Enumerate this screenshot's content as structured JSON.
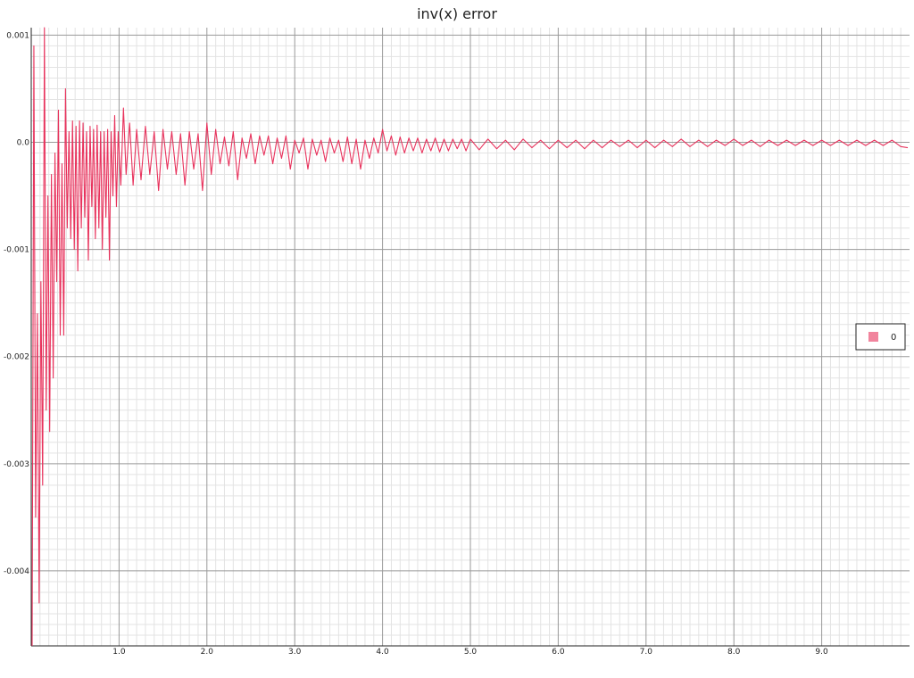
{
  "chart_data": {
    "type": "line",
    "title": "inv(x) error",
    "xlabel": "",
    "ylabel": "",
    "xlim": [
      0.0,
      10.0
    ],
    "ylim": [
      -0.0047,
      0.00107
    ],
    "x_ticks": [
      "1.0",
      "2.0",
      "3.0",
      "4.0",
      "5.0",
      "6.0",
      "7.0",
      "8.0",
      "9.0"
    ],
    "x_tick_values": [
      1,
      2,
      3,
      4,
      5,
      6,
      7,
      8,
      9
    ],
    "y_ticks": [
      "0.001",
      "0.0",
      "-0.001",
      "-0.002",
      "-0.003",
      "-0.004"
    ],
    "y_tick_values": [
      0.001,
      0.0,
      -0.001,
      -0.002,
      -0.003,
      -0.004
    ],
    "grid": true,
    "legend_position": "right",
    "series": [
      {
        "name": "0",
        "color": "#e8325c",
        "points": [
          [
            0.01,
            -0.0047
          ],
          [
            0.03,
            0.0009
          ],
          [
            0.05,
            -0.0035
          ],
          [
            0.07,
            -0.0016
          ],
          [
            0.09,
            -0.0043
          ],
          [
            0.11,
            -0.0013
          ],
          [
            0.13,
            -0.0032
          ],
          [
            0.15,
            0.00107
          ],
          [
            0.17,
            -0.0025
          ],
          [
            0.19,
            -0.0005
          ],
          [
            0.21,
            -0.0027
          ],
          [
            0.23,
            -0.0003
          ],
          [
            0.25,
            -0.0022
          ],
          [
            0.27,
            -0.0001
          ],
          [
            0.29,
            -0.0013
          ],
          [
            0.31,
            0.0003
          ],
          [
            0.33,
            -0.0018
          ],
          [
            0.35,
            -0.0002
          ],
          [
            0.37,
            -0.0018
          ],
          [
            0.39,
            0.0005
          ],
          [
            0.41,
            -0.0008
          ],
          [
            0.43,
            0.0001
          ],
          [
            0.45,
            -0.0009
          ],
          [
            0.47,
            0.0002
          ],
          [
            0.49,
            -0.001
          ],
          [
            0.51,
            0.00015
          ],
          [
            0.53,
            -0.0012
          ],
          [
            0.55,
            0.0002
          ],
          [
            0.57,
            -0.0008
          ],
          [
            0.59,
            0.00018
          ],
          [
            0.61,
            -0.0007
          ],
          [
            0.63,
            0.0001
          ],
          [
            0.65,
            -0.0011
          ],
          [
            0.67,
            0.00015
          ],
          [
            0.69,
            -0.0006
          ],
          [
            0.71,
            0.00012
          ],
          [
            0.73,
            -0.0009
          ],
          [
            0.75,
            0.00016
          ],
          [
            0.77,
            -0.0008
          ],
          [
            0.79,
            0.0001
          ],
          [
            0.81,
            -0.001
          ],
          [
            0.83,
            0.0001
          ],
          [
            0.85,
            -0.0007
          ],
          [
            0.87,
            0.00012
          ],
          [
            0.89,
            -0.0011
          ],
          [
            0.91,
            0.0001
          ],
          [
            0.93,
            -0.0005
          ],
          [
            0.95,
            0.00025
          ],
          [
            0.97,
            -0.0006
          ],
          [
            0.99,
            0.0001
          ],
          [
            1.02,
            -0.0004
          ],
          [
            1.05,
            0.00032
          ],
          [
            1.08,
            -0.0003
          ],
          [
            1.12,
            0.00018
          ],
          [
            1.16,
            -0.0004
          ],
          [
            1.2,
            0.00012
          ],
          [
            1.25,
            -0.00035
          ],
          [
            1.3,
            0.00015
          ],
          [
            1.35,
            -0.0003
          ],
          [
            1.4,
            0.0001
          ],
          [
            1.45,
            -0.00045
          ],
          [
            1.5,
            0.00012
          ],
          [
            1.55,
            -0.00025
          ],
          [
            1.6,
            0.0001
          ],
          [
            1.65,
            -0.0003
          ],
          [
            1.7,
            8e-05
          ],
          [
            1.75,
            -0.0004
          ],
          [
            1.8,
            0.0001
          ],
          [
            1.85,
            -0.00025
          ],
          [
            1.9,
            8e-05
          ],
          [
            1.95,
            -0.00045
          ],
          [
            2.0,
            0.00018
          ],
          [
            2.05,
            -0.0003
          ],
          [
            2.1,
            0.00012
          ],
          [
            2.15,
            -0.0002
          ],
          [
            2.2,
            5e-05
          ],
          [
            2.25,
            -0.00022
          ],
          [
            2.3,
            0.0001
          ],
          [
            2.35,
            -0.00035
          ],
          [
            2.4,
            4e-05
          ],
          [
            2.45,
            -0.00015
          ],
          [
            2.5,
            8e-05
          ],
          [
            2.55,
            -0.0002
          ],
          [
            2.6,
            6e-05
          ],
          [
            2.65,
            -0.00012
          ],
          [
            2.7,
            6e-05
          ],
          [
            2.75,
            -0.0002
          ],
          [
            2.8,
            4e-05
          ],
          [
            2.85,
            -0.00015
          ],
          [
            2.9,
            6e-05
          ],
          [
            2.95,
            -0.00025
          ],
          [
            3.0,
            2e-05
          ],
          [
            3.05,
            -0.0001
          ],
          [
            3.1,
            4e-05
          ],
          [
            3.15,
            -0.00025
          ],
          [
            3.2,
            3e-05
          ],
          [
            3.25,
            -0.00012
          ],
          [
            3.3,
            2e-05
          ],
          [
            3.35,
            -0.00018
          ],
          [
            3.4,
            4e-05
          ],
          [
            3.45,
            -0.0001
          ],
          [
            3.5,
            2e-05
          ],
          [
            3.55,
            -0.00018
          ],
          [
            3.6,
            5e-05
          ],
          [
            3.65,
            -0.0002
          ],
          [
            3.7,
            3e-05
          ],
          [
            3.75,
            -0.00025
          ],
          [
            3.8,
            2e-05
          ],
          [
            3.85,
            -0.00015
          ],
          [
            3.9,
            4e-05
          ],
          [
            3.95,
            -0.0001
          ],
          [
            4.0,
            0.00012
          ],
          [
            4.05,
            -8e-05
          ],
          [
            4.1,
            6e-05
          ],
          [
            4.15,
            -0.00012
          ],
          [
            4.2,
            5e-05
          ],
          [
            4.25,
            -0.0001
          ],
          [
            4.3,
            4e-05
          ],
          [
            4.35,
            -8e-05
          ],
          [
            4.4,
            4e-05
          ],
          [
            4.45,
            -0.0001
          ],
          [
            4.5,
            3e-05
          ],
          [
            4.55,
            -8e-05
          ],
          [
            4.6,
            4e-05
          ],
          [
            4.65,
            -9e-05
          ],
          [
            4.7,
            3e-05
          ],
          [
            4.75,
            -8e-05
          ],
          [
            4.8,
            3e-05
          ],
          [
            4.85,
            -6e-05
          ],
          [
            4.9,
            3e-05
          ],
          [
            4.95,
            -8e-05
          ],
          [
            5.0,
            3e-05
          ],
          [
            5.1,
            -7e-05
          ],
          [
            5.2,
            3e-05
          ],
          [
            5.3,
            -6e-05
          ],
          [
            5.4,
            2e-05
          ],
          [
            5.5,
            -7e-05
          ],
          [
            5.6,
            3e-05
          ],
          [
            5.7,
            -5e-05
          ],
          [
            5.8,
            2e-05
          ],
          [
            5.9,
            -6e-05
          ],
          [
            6.0,
            2e-05
          ],
          [
            6.1,
            -5e-05
          ],
          [
            6.2,
            2e-05
          ],
          [
            6.3,
            -6e-05
          ],
          [
            6.4,
            2e-05
          ],
          [
            6.5,
            -5e-05
          ],
          [
            6.6,
            2e-05
          ],
          [
            6.7,
            -4e-05
          ],
          [
            6.8,
            2e-05
          ],
          [
            6.9,
            -5e-05
          ],
          [
            7.0,
            2e-05
          ],
          [
            7.1,
            -5e-05
          ],
          [
            7.2,
            2e-05
          ],
          [
            7.3,
            -4e-05
          ],
          [
            7.4,
            3e-05
          ],
          [
            7.5,
            -4e-05
          ],
          [
            7.6,
            2e-05
          ],
          [
            7.7,
            -4e-05
          ],
          [
            7.8,
            2e-05
          ],
          [
            7.9,
            -3e-05
          ],
          [
            8.0,
            3e-05
          ],
          [
            8.1,
            -3e-05
          ],
          [
            8.2,
            2e-05
          ],
          [
            8.3,
            -4e-05
          ],
          [
            8.4,
            2e-05
          ],
          [
            8.5,
            -3e-05
          ],
          [
            8.6,
            2e-05
          ],
          [
            8.7,
            -3e-05
          ],
          [
            8.8,
            2e-05
          ],
          [
            8.9,
            -3e-05
          ],
          [
            9.0,
            2e-05
          ],
          [
            9.1,
            -3e-05
          ],
          [
            9.2,
            2e-05
          ],
          [
            9.3,
            -3e-05
          ],
          [
            9.4,
            2e-05
          ],
          [
            9.5,
            -3e-05
          ],
          [
            9.6,
            2e-05
          ],
          [
            9.7,
            -3e-05
          ],
          [
            9.8,
            2e-05
          ],
          [
            9.9,
            -4e-05
          ],
          [
            9.98,
            -5e-05
          ]
        ]
      }
    ]
  }
}
